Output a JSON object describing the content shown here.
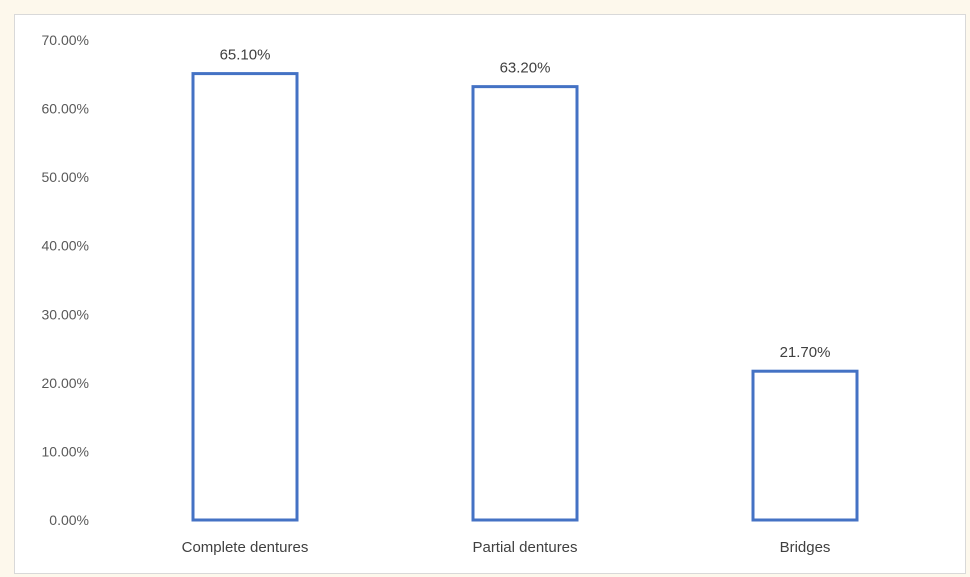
{
  "chart_data": {
    "type": "bar",
    "categories": [
      "Complete dentures",
      "Partial dentures",
      "Bridges"
    ],
    "values": [
      65.1,
      63.2,
      21.7
    ],
    "data_labels": [
      "65.10%",
      "63.20%",
      "21.70%"
    ],
    "title": "",
    "xlabel": "",
    "ylabel": "",
    "ylim": [
      0,
      70
    ],
    "yticks": [
      "0.00%",
      "10.00%",
      "20.00%",
      "30.00%",
      "40.00%",
      "50.00%",
      "60.00%",
      "70.00%"
    ],
    "grid": false,
    "legend": "none",
    "bar_style": "outline",
    "colors": {
      "bar_stroke": "#4472c4",
      "bar_fill": "#ffffff",
      "text": "#404040",
      "frame": "#d9d9d9"
    }
  }
}
